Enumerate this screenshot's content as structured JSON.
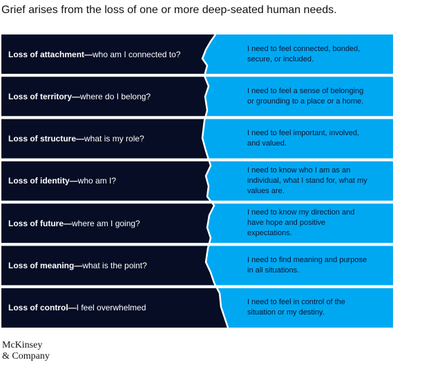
{
  "title": "Grief arises from the loss of one or more deep-seated human needs.",
  "rows": [
    {
      "loss": "Loss of attachment—",
      "question": "who am I connected to?",
      "need": "I need to feel connected, bonded, secure, or included."
    },
    {
      "loss": "Loss of territory—",
      "question": "where do I belong?",
      "need": "I need to feel a sense of belonging or grounding to a place or a home."
    },
    {
      "loss": "Loss of structure—",
      "question": "what is my role?",
      "need": "I need to feel important, involved, and valued."
    },
    {
      "loss": "Loss of identity—",
      "question": "who am I?",
      "need": "I need to know who I am as an individual, what I stand for, what my values are."
    },
    {
      "loss": "Loss of future—",
      "question": "where am I going?",
      "need": "I need to know my direction and have hope and positive expectations."
    },
    {
      "loss": "Loss of meaning—",
      "question": "what is the point?",
      "need": "I need to find meaning and purpose in all situations."
    },
    {
      "loss": "Loss of control—",
      "question": "I feel overwhelmed",
      "need": "I need to feel in control of the situation or my destiny."
    }
  ],
  "logo": [
    "McKinsey",
    "& Company"
  ]
}
